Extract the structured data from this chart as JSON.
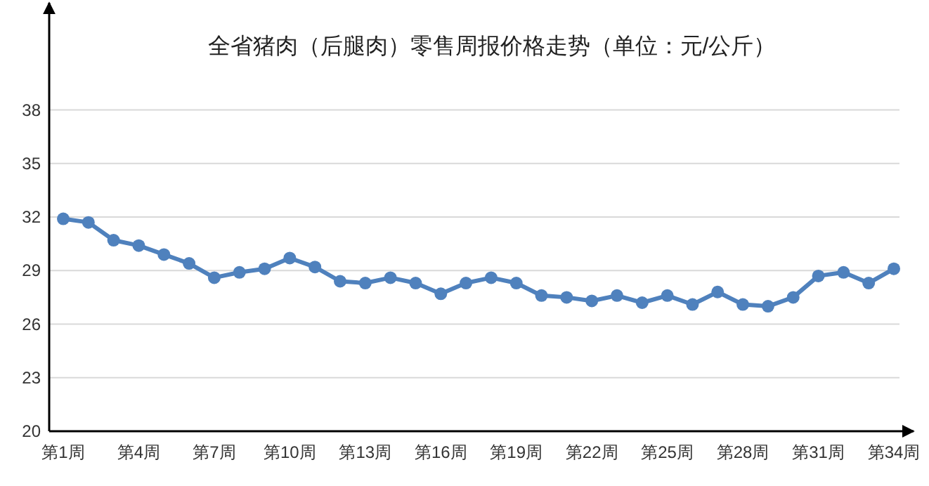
{
  "chart_data": {
    "type": "line",
    "title": "全省猪肉（后腿肉）零售周报价格走势（单位：元/公斤）",
    "categories": [
      "第1周",
      null,
      null,
      "第4周",
      null,
      null,
      "第7周",
      null,
      null,
      "第10周",
      null,
      null,
      "第13周",
      null,
      null,
      "第16周",
      null,
      null,
      "第19周",
      null,
      null,
      "第22周",
      null,
      null,
      "第25周",
      null,
      null,
      "第28周",
      null,
      null,
      "第31周",
      null,
      null,
      "第34周"
    ],
    "series": [
      {
        "color": "#4f81bd",
        "values": [
          31.9,
          31.7,
          30.7,
          30.4,
          29.9,
          29.4,
          28.6,
          28.9,
          29.1,
          29.7,
          29.2,
          28.4,
          28.3,
          28.6,
          28.3,
          27.7,
          28.3,
          28.6,
          28.3,
          27.6,
          27.5,
          27.3,
          27.6,
          27.2,
          27.6,
          27.1,
          27.8,
          27.1,
          27.0,
          27.5,
          28.7,
          28.9,
          28.3,
          29.1
        ]
      }
    ],
    "ylim": [
      20,
      44
    ],
    "yticks": [
      20,
      23,
      26,
      29,
      32,
      35,
      38
    ],
    "grid": "y",
    "marker": "circle"
  }
}
